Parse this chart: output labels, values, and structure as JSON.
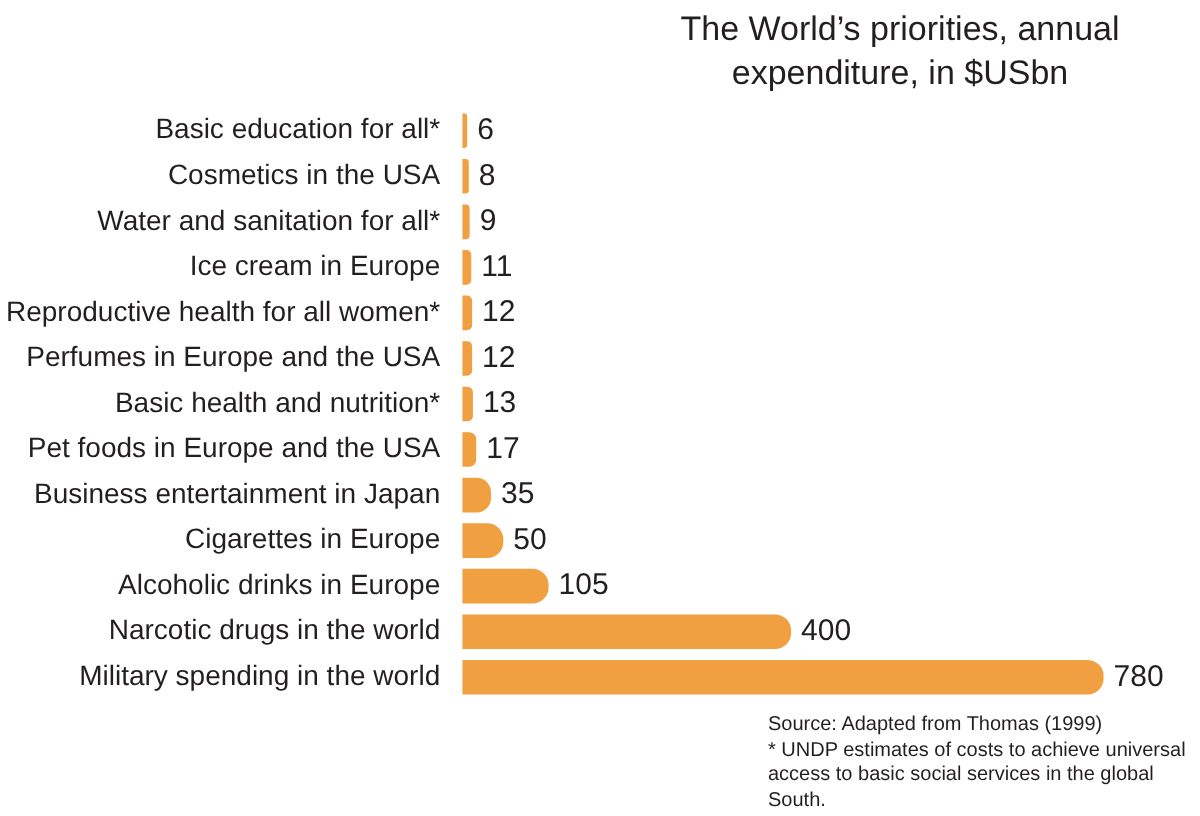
{
  "chart_data": {
    "type": "bar",
    "orientation": "horizontal",
    "title": "The World’s priorities, annual expenditure, in $USbn",
    "categories": [
      "Basic education for all*",
      "Cosmetics in the USA",
      "Water and sanitation for all*",
      "Ice cream in Europe",
      "Reproductive health for all women*",
      "Perfumes in Europe and the USA",
      "Basic health and nutrition*",
      "Pet foods in Europe and the USA",
      "Business entertainment in Japan",
      "Cigarettes in Europe",
      "Alcoholic drinks in Europe",
      "Narcotic drugs in the world",
      "Military spending in the world"
    ],
    "values": [
      6,
      8,
      9,
      11,
      12,
      12,
      13,
      17,
      35,
      50,
      105,
      400,
      780
    ],
    "color": "#f0a040",
    "data_labels": true,
    "legend": false,
    "annotations": [
      "Source: Adapted from Thomas (1999)",
      "* UNDP estimates of costs to achieve universal access to basic social services in the global South."
    ]
  }
}
